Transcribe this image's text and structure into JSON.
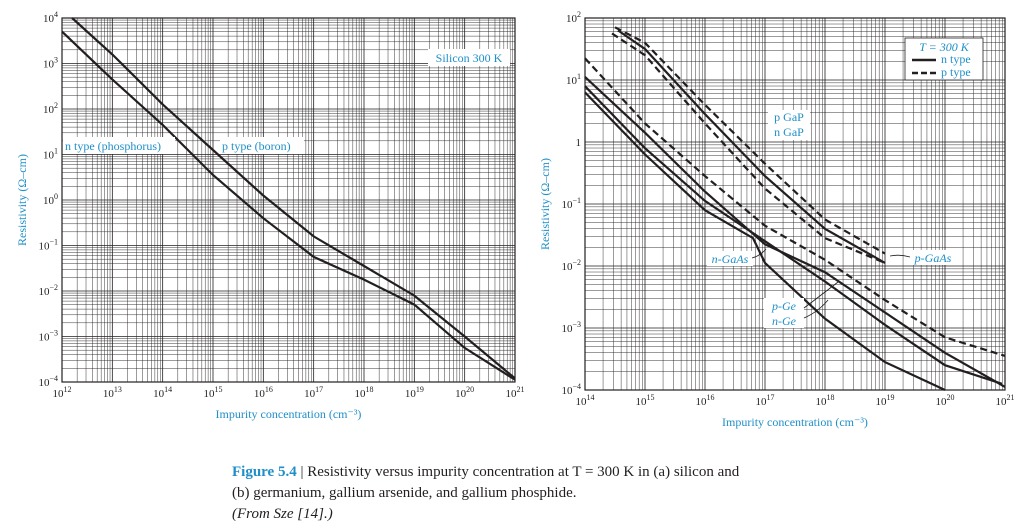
{
  "chart_data": [
    {
      "id": "a",
      "type": "line",
      "xscale": "log10",
      "yscale": "log10",
      "xlim_exp": [
        12,
        21
      ],
      "ylim_exp": [
        -4,
        4
      ],
      "xlabel": "Impurity concentration (cm⁻³)",
      "ylabel": "Resistivity (Ω–cm)",
      "xticks": [
        {
          "base": "10",
          "exp": "12",
          "v": 12
        },
        {
          "base": "10",
          "exp": "13",
          "v": 13
        },
        {
          "base": "10",
          "exp": "14",
          "v": 14
        },
        {
          "base": "10",
          "exp": "15",
          "v": 15
        },
        {
          "base": "10",
          "exp": "16",
          "v": 16
        },
        {
          "base": "10",
          "exp": "17",
          "v": 17
        },
        {
          "base": "10",
          "exp": "18",
          "v": 18
        },
        {
          "base": "10",
          "exp": "19",
          "v": 19
        },
        {
          "base": "10",
          "exp": "20",
          "v": 20
        },
        {
          "base": "10",
          "exp": "21",
          "v": 21
        }
      ],
      "yticks": [
        {
          "base": "10",
          "exp": "4",
          "v": 4
        },
        {
          "base": "10",
          "exp": "3",
          "v": 3
        },
        {
          "base": "10",
          "exp": "2",
          "v": 2
        },
        {
          "base": "10",
          "exp": "1",
          "v": 1
        },
        {
          "base": "10",
          "exp": "0",
          "v": 0
        },
        {
          "base": "10",
          "exp": "−1",
          "v": -1
        },
        {
          "base": "10",
          "exp": "−2",
          "v": -2
        },
        {
          "base": "10",
          "exp": "−3",
          "v": -3
        },
        {
          "base": "10",
          "exp": "−4",
          "v": -4
        }
      ],
      "series": [
        {
          "name": "n type (phosphorus)",
          "style": "solid",
          "log_x": [
            12,
            13,
            14,
            15,
            16,
            17,
            18,
            19,
            20,
            21
          ],
          "log_y": [
            3.7,
            2.65,
            1.65,
            0.55,
            -0.4,
            -1.25,
            -1.75,
            -2.3,
            -3.25,
            -3.95
          ]
        },
        {
          "name": "p type (boron)",
          "style": "solid",
          "log_x": [
            12.2,
            13,
            14,
            15,
            16,
            17,
            18,
            19,
            20,
            21
          ],
          "log_y": [
            4.0,
            3.2,
            2.1,
            1.1,
            0.1,
            -0.8,
            -1.45,
            -2.1,
            -3.0,
            -3.92
          ]
        }
      ],
      "labels": {
        "box": "Silicon 300 K",
        "n": "n type (phosphorus)",
        "p": "p type (boron)"
      }
    },
    {
      "id": "b",
      "type": "line",
      "xscale": "log10",
      "yscale": "log10",
      "xlim_exp": [
        14,
        21
      ],
      "ylim_exp": [
        -4,
        2
      ],
      "xlabel": "Impurity concentration (cm⁻³)",
      "ylabel": "Resistivity (Ω–cm)",
      "xticks": [
        {
          "base": "10",
          "exp": "14",
          "v": 14
        },
        {
          "base": "10",
          "exp": "15",
          "v": 15
        },
        {
          "base": "10",
          "exp": "16",
          "v": 16
        },
        {
          "base": "10",
          "exp": "17",
          "v": 17
        },
        {
          "base": "10",
          "exp": "18",
          "v": 18
        },
        {
          "base": "10",
          "exp": "19",
          "v": 19
        },
        {
          "base": "10",
          "exp": "20",
          "v": 20
        },
        {
          "base": "10",
          "exp": "21",
          "v": 21
        }
      ],
      "yticks": [
        {
          "base": "10",
          "exp": "2",
          "v": 2
        },
        {
          "base": "10",
          "exp": "1",
          "v": 1
        },
        {
          "base": "1",
          "exp": "",
          "v": 0
        },
        {
          "base": "10",
          "exp": "−1",
          "v": -1
        },
        {
          "base": "10",
          "exp": "−2",
          "v": -2
        },
        {
          "base": "10",
          "exp": "−3",
          "v": -3
        },
        {
          "base": "10",
          "exp": "−4",
          "v": -4
        }
      ],
      "series": [
        {
          "name": "n GaP",
          "style": "solid",
          "log_x": [
            14.55,
            15,
            16,
            17,
            18,
            19
          ],
          "log_y": [
            1.8,
            1.5,
            0.45,
            -0.55,
            -1.4,
            -1.95
          ]
        },
        {
          "name": "p GaP",
          "style": "dashed",
          "log_x": [
            14.5,
            15,
            16,
            17,
            18,
            19
          ],
          "log_y": [
            1.85,
            1.6,
            0.6,
            -0.35,
            -1.25,
            -1.8
          ]
        },
        {
          "name": "p GaP (2)",
          "style": "dashed",
          "log_x": [
            14.45,
            15,
            16,
            17,
            18,
            19
          ],
          "log_y": [
            1.75,
            1.4,
            0.3,
            -0.75,
            -1.55,
            -1.95
          ]
        },
        {
          "name": "n-GaAs",
          "style": "solid",
          "log_x": [
            14,
            15,
            16,
            17,
            18,
            19,
            20,
            20.95
          ],
          "log_y": [
            0.9,
            -0.1,
            -0.95,
            -1.6,
            -2.25,
            -2.95,
            -3.6,
            -3.9
          ]
        },
        {
          "name": "p-GaAs",
          "style": "dashed",
          "log_x": [
            14,
            15,
            16,
            17,
            18,
            19,
            20,
            21
          ],
          "log_y": [
            1.35,
            0.3,
            -0.55,
            -1.35,
            -1.9,
            -2.55,
            -3.15,
            -3.45
          ]
        },
        {
          "name": "p-Ge",
          "style": "solid",
          "log_x": [
            14,
            15,
            16,
            17,
            18,
            19,
            20,
            21
          ],
          "log_y": [
            1.05,
            0.15,
            -0.8,
            -1.65,
            -2.1,
            -2.75,
            -3.4,
            -3.95
          ]
        },
        {
          "name": "n-Ge",
          "style": "solid",
          "log_x": [
            14,
            15,
            16,
            16.8,
            17,
            18,
            19,
            20
          ],
          "log_y": [
            0.8,
            -0.2,
            -1.1,
            -1.55,
            -1.95,
            -2.85,
            -3.55,
            -4.0
          ]
        }
      ],
      "labels": {
        "temp": "T = 300 K",
        "legend_n": "n type",
        "legend_p": "p type",
        "pGaP": "p GaP",
        "nGaP": "n GaP",
        "nGaAs": "n-GaAs",
        "pGaAs": "p-GaAs",
        "pGe": "p-Ge",
        "nGe": "n-Ge"
      }
    }
  ],
  "caption": {
    "figure": "Figure 5.4",
    "separator": " | ",
    "line1": "Resistivity versus impurity concentration at T = 300 K in (a) silicon and",
    "line2": "(b) germanium, gallium arsenide, and gallium phosphide.",
    "line3": "(From Sze [14].)"
  },
  "colors": {
    "accent": "#1f8fc8",
    "ink": "#231f20",
    "grid": "#231f20"
  }
}
